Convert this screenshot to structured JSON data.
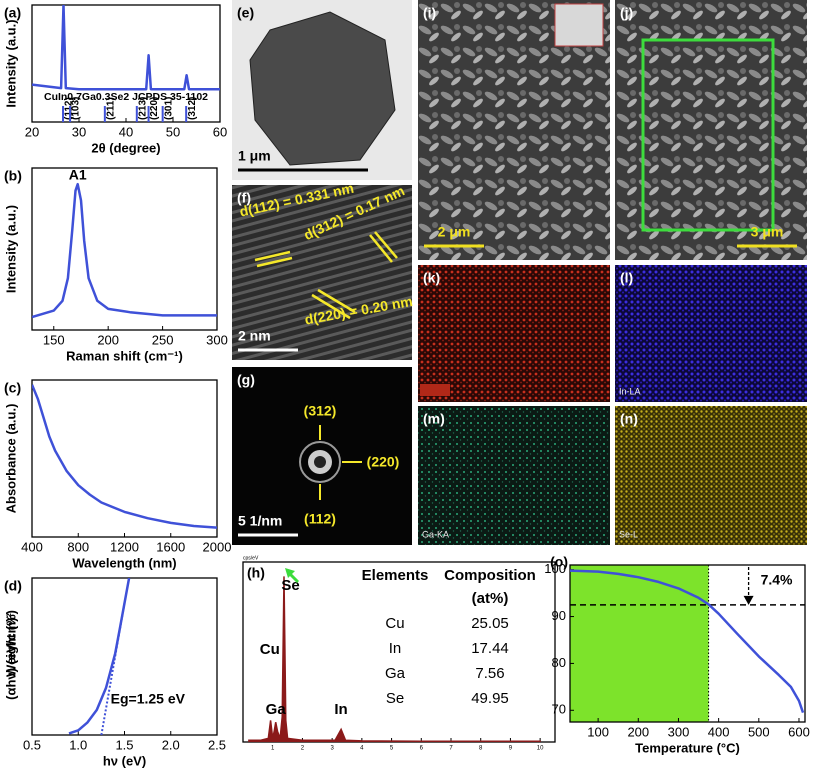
{
  "chart_data": [
    {
      "type": "line",
      "panel": "(a)",
      "x_label": "2θ (degree)",
      "y_label": "Intensity (a.u.)",
      "color": "#3f51d8",
      "xlim": [
        20,
        60
      ],
      "ylim": [
        0,
        100
      ],
      "xticks": [
        20,
        30,
        40,
        50,
        60
      ],
      "x": [
        20,
        24,
        26.2,
        26.7,
        27.2,
        30,
        35,
        40,
        44.3,
        44.8,
        45.3,
        50,
        52.4,
        52.9,
        53.4,
        56,
        60
      ],
      "values": [
        32,
        30,
        29,
        100,
        29,
        28,
        28,
        28,
        28,
        57,
        28,
        28,
        28,
        40,
        28,
        28,
        28
      ],
      "annotation": "CuIn0.7Ga0.3Se2 JCPDS 35-1102",
      "reference_peaks": [
        26.6,
        28.1,
        35.5,
        42.3,
        44.8,
        47.8,
        52.8
      ],
      "reference_labels": [
        "(112)",
        "(103)",
        "(211)",
        "(213)",
        "(220)",
        "(301)",
        "(312)"
      ]
    },
    {
      "type": "line",
      "panel": "(b)",
      "x_label": "Raman shift (cm⁻¹)",
      "y_label": "Intensity (a.u.)",
      "color": "#3f51d8",
      "xlim": [
        130,
        300
      ],
      "ylim": [
        0,
        100
      ],
      "xticks": [
        150,
        200,
        250,
        300
      ],
      "x": [
        130,
        140,
        150,
        158,
        163,
        167,
        170,
        172,
        175,
        178,
        182,
        190,
        200,
        220,
        250,
        300
      ],
      "values": [
        8,
        10,
        12,
        18,
        32,
        62,
        86,
        90,
        80,
        55,
        32,
        18,
        13,
        11,
        9,
        9
      ],
      "annotation": "A1"
    },
    {
      "type": "line",
      "panel": "(c)",
      "x_label": "Wavelength (nm)",
      "y_label": "Absorbance (a.u.)",
      "color": "#3f51d8",
      "xlim": [
        400,
        2000
      ],
      "ylim": [
        0,
        100
      ],
      "xticks": [
        400,
        800,
        1200,
        1600,
        2000
      ],
      "x": [
        400,
        450,
        500,
        550,
        600,
        700,
        800,
        900,
        1000,
        1200,
        1400,
        1600,
        1800,
        2000
      ],
      "values": [
        97,
        88,
        76,
        64,
        55,
        42,
        33,
        27,
        22,
        16,
        12,
        9,
        7,
        6
      ]
    },
    {
      "type": "line",
      "panel": "(d)",
      "x_label": "hν (eV)",
      "y_label": "(αhν) (eV/cm)²",
      "color": "#3f51d8",
      "xlim": [
        0.5,
        2.5
      ],
      "ylim": [
        0,
        100
      ],
      "xticks": [
        0.5,
        {
          "value": 1,
          "label": "1.0"
        },
        1.5,
        {
          "value": 2,
          "label": "2.0"
        },
        2.5
      ],
      "x": [
        0.9,
        1.0,
        1.1,
        1.2,
        1.3,
        1.4,
        1.45,
        1.5,
        1.55
      ],
      "values": [
        1,
        3,
        8,
        16,
        30,
        52,
        68,
        84,
        100
      ],
      "fit_x": [
        1.25,
        1.5
      ],
      "fit_y": [
        0,
        84
      ],
      "annotation": "Eg=1.25 eV"
    },
    {
      "type": "spectrum",
      "panel": "(h)",
      "y_label": "cps/eV",
      "color": "#8b1a1a",
      "xlim": [
        0,
        10.5
      ],
      "ylim": [
        0,
        5
      ],
      "xticks": [
        1,
        2,
        3,
        4,
        5,
        6,
        7,
        8,
        9,
        10
      ],
      "x": [
        0.2,
        0.6,
        0.85,
        0.93,
        1.0,
        1.05,
        1.1,
        1.16,
        1.25,
        1.32,
        1.38,
        1.44,
        1.5,
        2,
        3.1,
        3.3,
        3.45,
        4,
        6,
        8,
        10
      ],
      "values": [
        0.05,
        0.05,
        0.1,
        0.6,
        0.1,
        0.3,
        0.55,
        0.3,
        0.1,
        0.7,
        4.6,
        0.6,
        0.1,
        0.05,
        0.05,
        0.35,
        0.05,
        0.03,
        0.02,
        0.02,
        0.02
      ],
      "peak_labels": [
        "Se",
        "Cu",
        "Ga",
        "In"
      ],
      "table": {
        "header": [
          "Elements",
          "Composition"
        ],
        "unit": "(at%)",
        "rows": [
          [
            "Cu",
            25.05
          ],
          [
            "In",
            17.44
          ],
          [
            "Ga",
            7.56
          ],
          [
            "Se",
            49.95
          ]
        ]
      }
    },
    {
      "type": "line",
      "panel": "(o)",
      "x_label": "Temperature (°C)",
      "y_label": "Weight (%)",
      "color": "#3f51d8",
      "xlim": [
        30,
        615
      ],
      "ylim": [
        67.5,
        101
      ],
      "xticks": [
        100,
        200,
        300,
        400,
        500,
        600
      ],
      "yticks": [
        70,
        80,
        90,
        100
      ],
      "x": [
        30,
        100,
        150,
        200,
        250,
        300,
        350,
        375,
        400,
        450,
        500,
        550,
        580,
        600,
        610
      ],
      "values": [
        99.8,
        99.6,
        99.1,
        98.4,
        97.4,
        96,
        94,
        92.6,
        90.6,
        86,
        81.5,
        77.5,
        75,
        72,
        69.5
      ],
      "reference_x": 375,
      "reference_y": 92.5,
      "annotation": "7.4%"
    }
  ],
  "images": [
    {
      "label": "(e)",
      "scale": "1 μm"
    },
    {
      "label": "(f)",
      "scale": "2 nm",
      "notes": [
        "d(112) = 0.331 nm",
        "d(312) = 0.17 nm",
        "d(220) = 0.20 nm"
      ]
    },
    {
      "label": "(g)",
      "scale": "5 1/nm",
      "notes": [
        "(312)",
        "(220)",
        "(112)"
      ]
    },
    {
      "label": "(i)",
      "scale": "2 μm"
    },
    {
      "label": "(j)",
      "scale": "3 μm"
    },
    {
      "label": "(k)"
    },
    {
      "label": "(l)",
      "element": "In-LA"
    },
    {
      "label": "(m)",
      "element": "Ga-KA"
    },
    {
      "label": "(n)",
      "element": "Se-L"
    }
  ]
}
